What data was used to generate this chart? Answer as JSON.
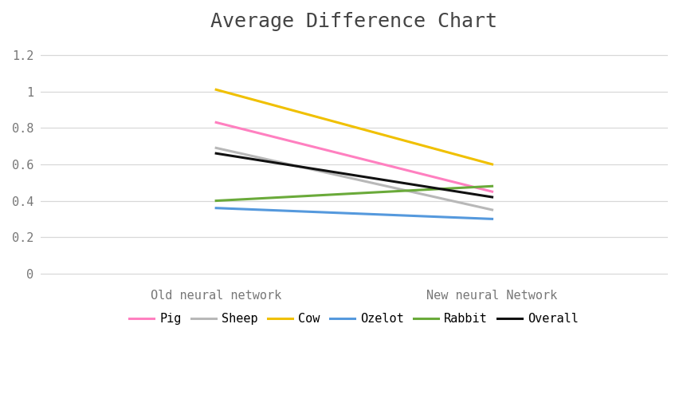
{
  "title": "Average Difference Chart",
  "categories": [
    "Old neural network",
    "New neural Network"
  ],
  "series": [
    {
      "label": "Pig",
      "values": [
        0.83,
        0.45
      ],
      "color": "#ff80c0"
    },
    {
      "label": "Sheep",
      "values": [
        0.69,
        0.35
      ],
      "color": "#b8b8b8"
    },
    {
      "label": "Cow",
      "values": [
        1.01,
        0.6
      ],
      "color": "#f0c000"
    },
    {
      "label": "Ozelot",
      "values": [
        0.36,
        0.3
      ],
      "color": "#5599dd"
    },
    {
      "label": "Rabbit",
      "values": [
        0.4,
        0.48
      ],
      "color": "#6aaa3a"
    },
    {
      "label": "Overall",
      "values": [
        0.66,
        0.42
      ],
      "color": "#111111"
    }
  ],
  "ylim": [
    -0.05,
    1.28
  ],
  "yticks": [
    0,
    0.2,
    0.4,
    0.6,
    0.8,
    1.0,
    1.2
  ],
  "ytick_labels": [
    "0",
    "0.2",
    "0.4",
    "0.6",
    "0.8",
    "1",
    "1.2"
  ],
  "background_color": "#ffffff",
  "title_fontsize": 18,
  "tick_fontsize": 11,
  "legend_fontsize": 11,
  "line_width": 2.2,
  "x_positions": [
    0.28,
    0.72
  ]
}
